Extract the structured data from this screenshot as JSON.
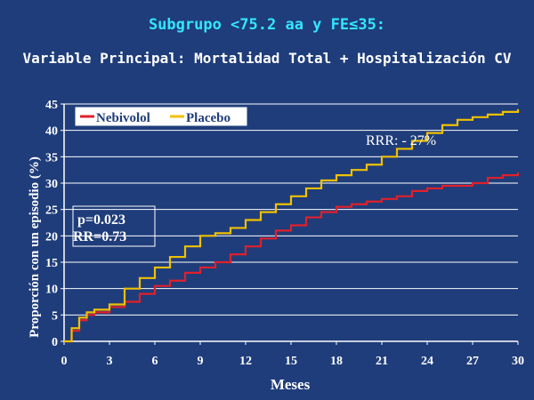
{
  "header": {
    "title": "Subgrupo <75.2 aa y FE≤35:",
    "subtitle": "Variable Principal: Mortalidad Total + Hospitalización CV"
  },
  "annotations": {
    "rrr": "RRR: - 27%",
    "p_value": "p=0.023",
    "rr": "RR=0.73"
  },
  "colors": {
    "background": "#1f3d7a",
    "nebivolol": "#e0202a",
    "placebo": "#f0c000",
    "title": "#33e6ff",
    "text": "#ffffff"
  },
  "chart_data": {
    "type": "line",
    "xlabel": "Meses",
    "ylabel": "Proporción con un episodio (%)",
    "xlim": [
      0,
      30
    ],
    "ylim": [
      0,
      45
    ],
    "xticks": [
      0,
      3,
      6,
      9,
      12,
      15,
      18,
      21,
      24,
      27,
      30
    ],
    "yticks": [
      0,
      5,
      10,
      15,
      20,
      25,
      30,
      35,
      40,
      45
    ],
    "grid": true,
    "legend_position": "top-left",
    "series": [
      {
        "name": "Nebivolol",
        "color": "#e0202a",
        "x": [
          0,
          0.5,
          1,
          1.5,
          2,
          3,
          4,
          5,
          6,
          7,
          8,
          9,
          10,
          11,
          12,
          13,
          14,
          15,
          16,
          17,
          18,
          19,
          20,
          21,
          22,
          23,
          24,
          25,
          26,
          27,
          28,
          29,
          30
        ],
        "y": [
          0,
          2,
          4,
          5,
          5.5,
          6.5,
          7.5,
          9,
          10.5,
          11.5,
          13,
          14,
          15,
          16.5,
          18,
          19.5,
          21,
          22,
          23.5,
          24.5,
          25.5,
          26,
          26.5,
          27,
          27.5,
          28.5,
          29,
          29.5,
          29.5,
          30,
          31,
          31.5,
          32
        ]
      },
      {
        "name": "Placebo",
        "color": "#f0c000",
        "x": [
          0,
          0.5,
          1,
          1.5,
          2,
          3,
          4,
          5,
          6,
          7,
          8,
          9,
          10,
          11,
          12,
          13,
          14,
          15,
          16,
          17,
          18,
          19,
          20,
          21,
          22,
          23,
          24,
          25,
          26,
          27,
          28,
          29,
          30
        ],
        "y": [
          0,
          2.5,
          4.5,
          5.5,
          6,
          7,
          10,
          12,
          14,
          16,
          18,
          20,
          20.5,
          21.5,
          23,
          24.5,
          26,
          27.5,
          29,
          30.5,
          31.5,
          32.5,
          33.5,
          35,
          36.5,
          38,
          39.5,
          41,
          42,
          42.5,
          43,
          43.5,
          44
        ]
      }
    ]
  }
}
